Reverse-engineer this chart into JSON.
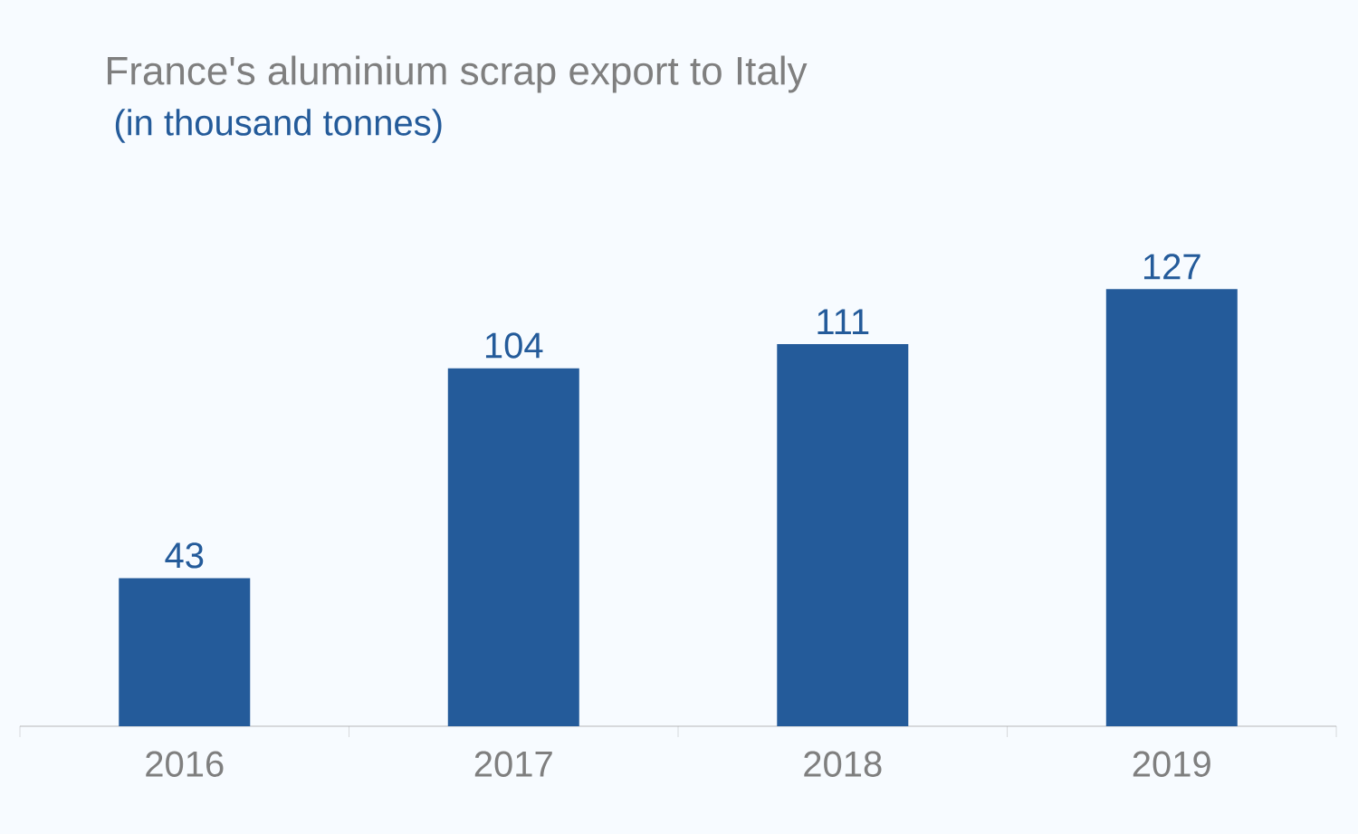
{
  "chart_data": {
    "type": "bar",
    "title": "France's aluminium scrap export to Italy",
    "subtitle": "(in thousand tonnes)",
    "categories": [
      "2016",
      "2017",
      "2018",
      "2019"
    ],
    "values": [
      43,
      104,
      111,
      127
    ],
    "color": "#245b9a",
    "data_labels": true
  }
}
